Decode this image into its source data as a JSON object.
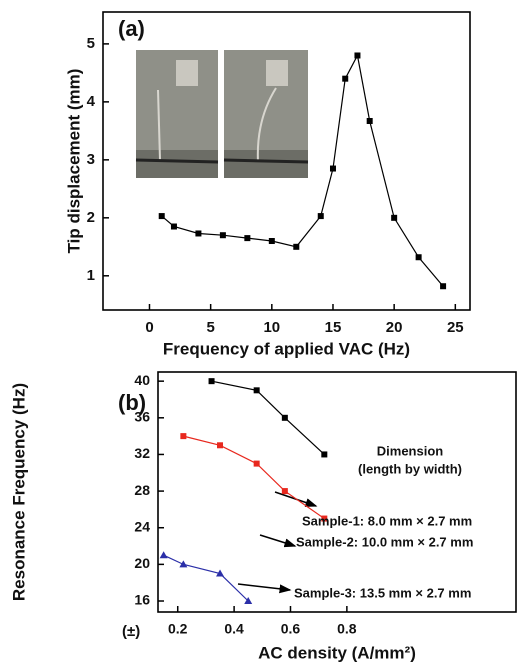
{
  "chart_data": [
    {
      "type": "line",
      "panel": "(a)",
      "x_label": "Frequency of applied VAC (Hz)",
      "y_label": "Tip displacement (mm)",
      "xlim": [
        -3.8,
        26.2
      ],
      "xticks": [
        0,
        5,
        10,
        15,
        20,
        25
      ],
      "ylim": [
        0.41,
        5.55
      ],
      "yticks": [
        1,
        2,
        3,
        4,
        5
      ],
      "series": [
        {
          "color": "#000000",
          "x": [
            1,
            2,
            4,
            6,
            8,
            10,
            12,
            14,
            15,
            16,
            17,
            18,
            20,
            22,
            24
          ],
          "values": [
            2.03,
            1.85,
            1.73,
            1.7,
            1.65,
            1.6,
            1.5,
            2.03,
            2.85,
            4.4,
            4.8,
            3.67,
            2.0,
            1.32,
            0.82
          ]
        }
      ]
    },
    {
      "type": "line",
      "panel": "(b)",
      "x_label": "AC density (A/mm²)",
      "y_label": "Resonance Frequency (Hz)",
      "x_prefix": "(±)",
      "xlim": [
        0.13,
        1.4
      ],
      "xticks": [
        0.2,
        0.4,
        0.6,
        0.8
      ],
      "ylim": [
        14.8,
        41
      ],
      "yticks": [
        16,
        20,
        24,
        28,
        32,
        36,
        40
      ],
      "series": [
        {
          "color": "#000000",
          "x": [
            0.32,
            0.48,
            0.58,
            0.72
          ],
          "values": [
            40,
            39,
            36,
            32
          ]
        },
        {
          "color": "#e8281e",
          "x": [
            0.22,
            0.35,
            0.48,
            0.58,
            0.72
          ],
          "values": [
            34,
            33,
            31,
            28,
            25
          ]
        },
        {
          "color": "#2b2fa8",
          "x": [
            0.15,
            0.22,
            0.35,
            0.45
          ],
          "values": [
            21,
            20,
            19,
            16
          ]
        }
      ],
      "annotations": [
        "Dimension",
        "(length by width)",
        "Sample-1: 8.0 mm × 2.7 mm",
        "Sample-2: 10.0 mm × 2.7 mm",
        "Sample-3: 13.5 mm × 2.7 mm"
      ]
    }
  ]
}
